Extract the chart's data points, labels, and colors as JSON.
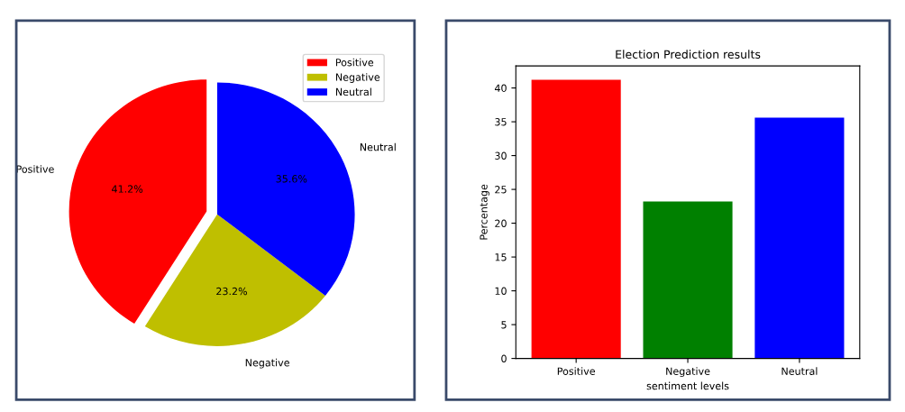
{
  "chart_data": [
    {
      "type": "pie",
      "categories": [
        "Positive",
        "Negative",
        "Neutral"
      ],
      "values": [
        41.2,
        23.2,
        35.6
      ],
      "colors": [
        "#ff0000",
        "#bfbf00",
        "#0000ff"
      ],
      "value_labels": [
        "41.2%",
        "23.2%",
        "35.6%"
      ],
      "legend": "top right"
    },
    {
      "type": "bar",
      "title": "Election Prediction results",
      "xlabel": "sentiment levels",
      "ylabel": "Percentage",
      "categories": [
        "Positive",
        "Negative",
        "Neutral"
      ],
      "values": [
        41.2,
        23.2,
        35.6
      ],
      "colors": [
        "#ff0000",
        "#008000",
        "#0000ff"
      ],
      "ylim": [
        0,
        43.26
      ],
      "yticks": [
        0,
        5,
        10,
        15,
        20,
        25,
        30,
        35,
        40
      ],
      "grid": false
    }
  ]
}
